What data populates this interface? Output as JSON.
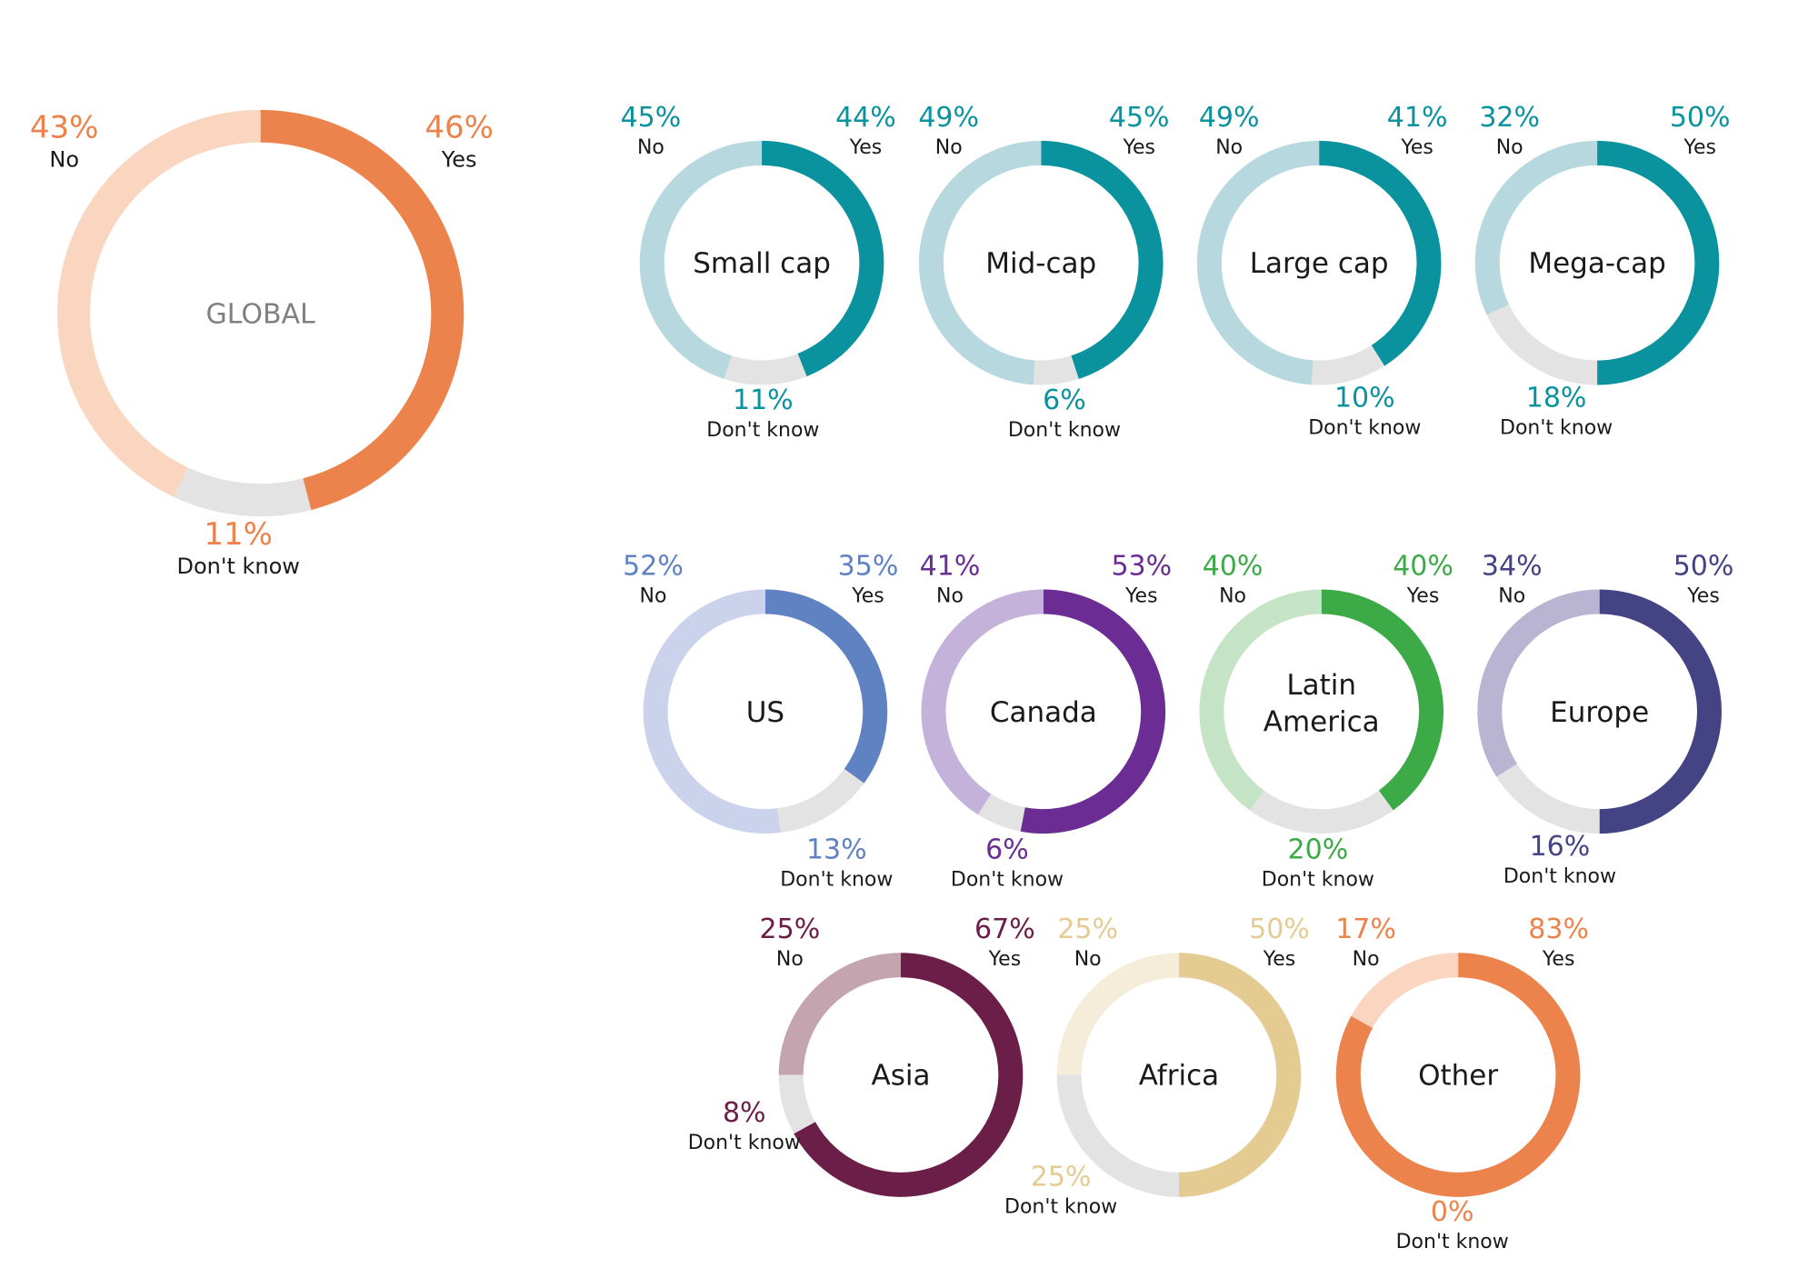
{
  "chart_data": [
    {
      "type": "pie",
      "center_label": "GLOBAL",
      "slices": [
        {
          "label": "Yes",
          "value": 46
        },
        {
          "label": "Don't know",
          "value": 11
        },
        {
          "label": "No",
          "value": 43
        }
      ],
      "value_labels": [
        "46%",
        "11%",
        "43%"
      ],
      "colors": {
        "Yes": "#ED834C",
        "Don't know": "#E3E3E3",
        "No": "#FAD6C1",
        "text": "#ED834C"
      }
    },
    {
      "type": "pie",
      "center_label": "Small cap",
      "slices": [
        {
          "label": "Yes",
          "value": 44
        },
        {
          "label": "Don't know",
          "value": 11
        },
        {
          "label": "No",
          "value": 45
        }
      ],
      "value_labels": [
        "44%",
        "11%",
        "45%"
      ],
      "colors": {
        "Yes": "#0A929E",
        "Don't know": "#E3E3E3",
        "No": "#B6D8DE",
        "text": "#0A929E"
      }
    },
    {
      "type": "pie",
      "center_label": "Mid-cap",
      "slices": [
        {
          "label": "Yes",
          "value": 45
        },
        {
          "label": "Don't know",
          "value": 6
        },
        {
          "label": "No",
          "value": 49
        }
      ],
      "value_labels": [
        "45%",
        "6%",
        "49%"
      ],
      "colors": {
        "Yes": "#0A929E",
        "Don't know": "#E3E3E3",
        "No": "#B6D8DE",
        "text": "#0A929E"
      }
    },
    {
      "type": "pie",
      "center_label": "Large cap",
      "slices": [
        {
          "label": "Yes",
          "value": 41
        },
        {
          "label": "Don't know",
          "value": 10
        },
        {
          "label": "No",
          "value": 49
        }
      ],
      "value_labels": [
        "41%",
        "10%",
        "49%"
      ],
      "colors": {
        "Yes": "#0A929E",
        "Don't know": "#E3E3E3",
        "No": "#B6D8DE",
        "text": "#0A929E"
      }
    },
    {
      "type": "pie",
      "center_label": "Mega-cap",
      "slices": [
        {
          "label": "Yes",
          "value": 50
        },
        {
          "label": "Don't know",
          "value": 18
        },
        {
          "label": "No",
          "value": 32
        }
      ],
      "value_labels": [
        "50%",
        "18%",
        "32%"
      ],
      "colors": {
        "Yes": "#0A929E",
        "Don't know": "#E3E3E3",
        "No": "#B6D8DE",
        "text": "#0A929E"
      }
    },
    {
      "type": "pie",
      "center_label": "US",
      "slices": [
        {
          "label": "Yes",
          "value": 35
        },
        {
          "label": "Don't know",
          "value": 13
        },
        {
          "label": "No",
          "value": 52
        }
      ],
      "value_labels": [
        "35%",
        "13%",
        "52%"
      ],
      "colors": {
        "Yes": "#5F82C2",
        "Don't know": "#E3E3E3",
        "No": "#CBD3EC",
        "text": "#5F82C2"
      }
    },
    {
      "type": "pie",
      "center_label": "Canada",
      "slices": [
        {
          "label": "Yes",
          "value": 53
        },
        {
          "label": "Don't know",
          "value": 6
        },
        {
          "label": "No",
          "value": 41
        }
      ],
      "value_labels": [
        "53%",
        "6%",
        "41%"
      ],
      "colors": {
        "Yes": "#6B2D94",
        "Don't know": "#E3E3E3",
        "No": "#C5B2DB",
        "text": "#6B2D94"
      }
    },
    {
      "type": "pie",
      "center_label": "Latin America",
      "slices": [
        {
          "label": "Yes",
          "value": 40
        },
        {
          "label": "Don't know",
          "value": 20
        },
        {
          "label": "No",
          "value": 40
        }
      ],
      "value_labels": [
        "40%",
        "20%",
        "40%"
      ],
      "colors": {
        "Yes": "#3BAA47",
        "Don't know": "#E3E3E3",
        "No": "#C5E3C5",
        "text": "#3BAA47"
      }
    },
    {
      "type": "pie",
      "center_label": "Europe",
      "slices": [
        {
          "label": "Yes",
          "value": 50
        },
        {
          "label": "Don't know",
          "value": 16
        },
        {
          "label": "No",
          "value": 34
        }
      ],
      "value_labels": [
        "50%",
        "16%",
        "34%"
      ],
      "colors": {
        "Yes": "#444383",
        "Don't know": "#E3E3E3",
        "No": "#B8B4D2",
        "text": "#444383"
      }
    },
    {
      "type": "pie",
      "center_label": "Asia",
      "slices": [
        {
          "label": "Yes",
          "value": 67
        },
        {
          "label": "Don't know",
          "value": 8
        },
        {
          "label": "No",
          "value": 25
        }
      ],
      "value_labels": [
        "67%",
        "8%",
        "25%"
      ],
      "colors": {
        "Yes": "#6B1E47",
        "Don't know": "#E3E3E3",
        "No": "#C4A4AE",
        "text": "#6B1E47"
      }
    },
    {
      "type": "pie",
      "center_label": "Africa",
      "slices": [
        {
          "label": "Yes",
          "value": 50
        },
        {
          "label": "Don't know",
          "value": 25
        },
        {
          "label": "No",
          "value": 25
        }
      ],
      "value_labels": [
        "50%",
        "25%",
        "25%"
      ],
      "colors": {
        "Yes": "#E3CB92",
        "Don't know": "#E3E3E3",
        "No": "#F5ECDA",
        "text": "#E3CB92"
      }
    },
    {
      "type": "pie",
      "center_label": "Other",
      "slices": [
        {
          "label": "Yes",
          "value": 83
        },
        {
          "label": "Don't know",
          "value": 0
        },
        {
          "label": "No",
          "value": 17
        }
      ],
      "value_labels": [
        "83%",
        "0%",
        "17%"
      ],
      "colors": {
        "Yes": "#ED834C",
        "Don't know": "#E3E3E3",
        "No": "#FAD6C1",
        "text": "#ED834C"
      }
    }
  ]
}
